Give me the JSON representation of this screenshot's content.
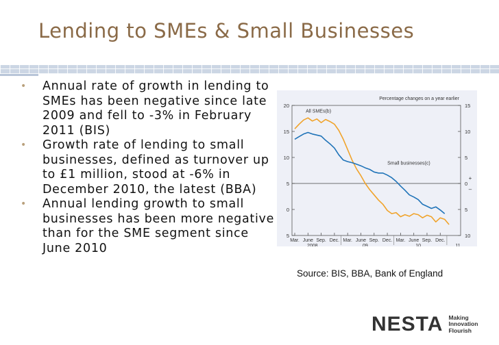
{
  "slide": {
    "title": "Lending to SMEs & Small Businesses",
    "bullets": [
      "Annual rate of growth in lending to SMEs has been negative since late 2009 and fell to -3% in February 2011 (BIS)",
      "Growth rate of lending to small businesses, defined as turnover up to £1 million, stood at -6% in December 2010, the latest (BBA)",
      "Annual lending growth to small businesses has been more negative than for the SME segment since June 2010"
    ],
    "source": "Source: BIS, BBA, Bank of England",
    "colors": {
      "title": "#8a6a47",
      "bullet": "#b9a07c",
      "rule": "#ccd6e4"
    }
  },
  "logo": {
    "wordmark": "NESTA",
    "tagline": [
      "Making",
      "Innovation",
      "Flourish"
    ]
  },
  "chart_data": {
    "type": "line",
    "title": "",
    "axis_note": "Percentage changes on a year earlier",
    "x_tick_labels": [
      "Mar.",
      "June",
      "Sep.",
      "Dec.",
      "Mar.",
      "June",
      "Sep.",
      "Dec.",
      "Mar.",
      "June",
      "Sep.",
      "Dec."
    ],
    "x_year_labels": [
      {
        "label": "2008",
        "month_index": 4
      },
      {
        "label": "09",
        "month_index": 16
      },
      {
        "label": "10",
        "month_index": 28
      },
      {
        "label": "11",
        "month_index": 37
      }
    ],
    "left_axis": {
      "ylim": [
        -5,
        20
      ],
      "ticks": [
        20,
        15,
        10,
        5,
        0,
        -5
      ],
      "tick_labels": [
        "20",
        "15",
        "10",
        "5",
        "0",
        "5"
      ]
    },
    "right_axis": {
      "ylim": [
        -10,
        15
      ],
      "ticks": [
        15,
        10,
        5,
        0,
        -5,
        -10
      ],
      "tick_labels": [
        "15",
        "10",
        "5",
        "0",
        "5",
        "10"
      ],
      "sign_labels": [
        "+",
        "–"
      ]
    },
    "grid": false,
    "zero_line": true,
    "series": [
      {
        "name": "All SMEs(b)",
        "color": "#f0a32a",
        "axis": "left",
        "x": [
          0,
          1,
          2,
          3,
          4,
          5,
          6,
          7,
          8,
          9,
          10,
          11,
          12,
          13,
          14,
          15,
          16,
          17,
          18,
          19,
          20,
          21,
          22,
          23,
          24,
          25,
          26,
          27,
          28,
          29,
          30,
          31,
          32,
          33,
          34,
          35
        ],
        "values": [
          15.5,
          16.4,
          17.2,
          17.6,
          17.0,
          17.4,
          16.7,
          17.3,
          16.9,
          16.4,
          15.2,
          13.5,
          11.5,
          9.5,
          7.8,
          6.5,
          5.0,
          3.8,
          2.8,
          1.8,
          1.0,
          -0.2,
          -0.8,
          -0.6,
          -1.4,
          -1.0,
          -1.3,
          -0.8,
          -1.0,
          -1.6,
          -1.1,
          -1.4,
          -2.4,
          -1.6,
          -1.9,
          -2.9
        ]
      },
      {
        "name": "Small businesses(c)",
        "color": "#1f73b8",
        "axis": "right",
        "x": [
          0,
          1,
          2,
          3,
          4,
          5,
          6,
          7,
          8,
          9,
          10,
          11,
          12,
          13,
          14,
          15,
          16,
          17,
          18,
          19,
          20,
          21,
          22,
          23,
          24,
          25,
          26,
          27,
          28,
          29,
          30,
          31,
          32,
          33,
          34
        ],
        "values": [
          8.5,
          9.0,
          9.5,
          9.8,
          9.5,
          9.3,
          9.1,
          8.3,
          7.6,
          6.8,
          5.5,
          4.5,
          4.2,
          4.0,
          3.7,
          3.4,
          3.0,
          2.7,
          2.2,
          2.0,
          2.0,
          1.6,
          1.1,
          0.4,
          -0.5,
          -1.3,
          -2.2,
          -2.6,
          -3.1,
          -4.0,
          -4.4,
          -4.8,
          -4.5,
          -5.1,
          -5.8
        ]
      }
    ]
  }
}
